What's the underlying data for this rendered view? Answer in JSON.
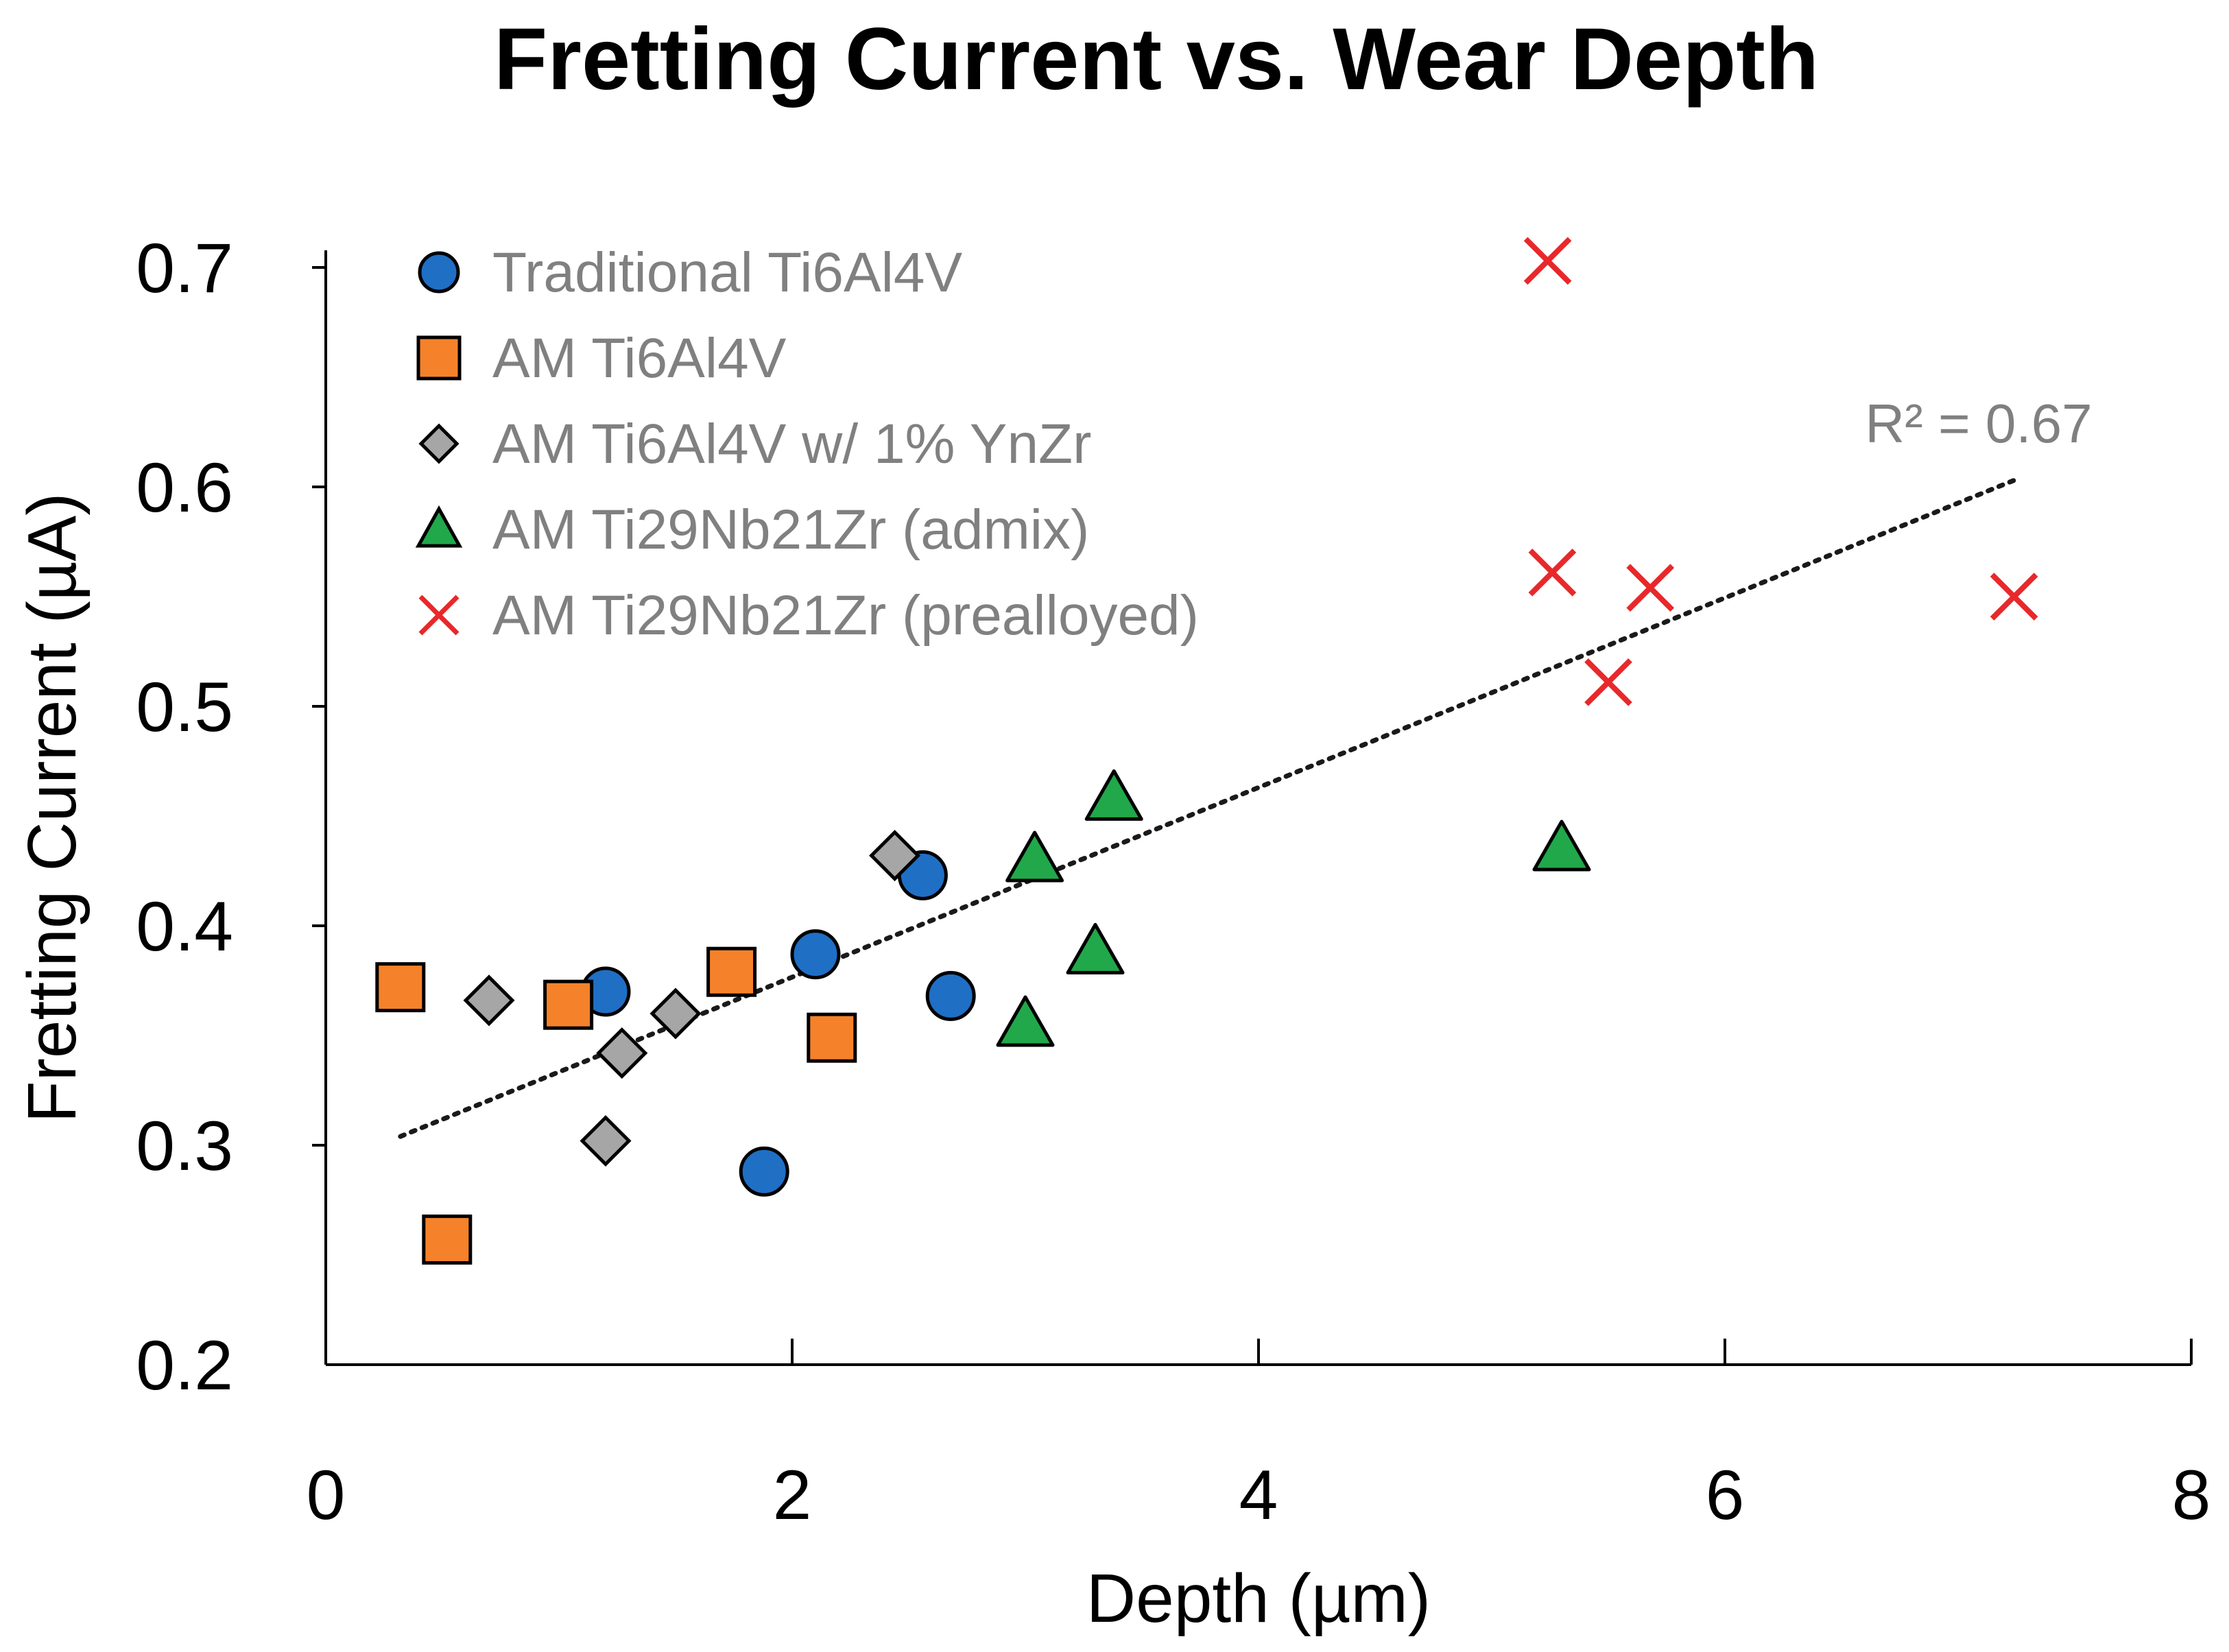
{
  "chart_data": {
    "type": "scatter",
    "title": "Fretting Current vs. Wear Depth",
    "xlabel": "Depth (µm)",
    "ylabel": "Fretting Current (µA)",
    "xlim": [
      0,
      8
    ],
    "ylim": [
      0.2,
      0.7
    ],
    "xticks": [
      "0",
      "2",
      "4",
      "6",
      "8"
    ],
    "yticks": [
      "0.2",
      "0.3",
      "0.4",
      "0.5",
      "0.6",
      "0.7"
    ],
    "legend_position": "top-left",
    "grid": false,
    "series": [
      {
        "name": "Traditional Ti6Al4V",
        "marker": "circle",
        "color": "#1F6FC5",
        "points": [
          [
            1.2,
            0.37
          ],
          [
            1.88,
            0.288
          ],
          [
            2.1,
            0.387
          ],
          [
            2.56,
            0.423
          ],
          [
            2.68,
            0.368
          ]
        ]
      },
      {
        "name": "AM Ti6Al4V",
        "marker": "square",
        "color": "#F5822A",
        "points": [
          [
            0.32,
            0.372
          ],
          [
            0.52,
            0.257
          ],
          [
            1.04,
            0.364
          ],
          [
            1.74,
            0.379
          ],
          [
            2.17,
            0.349
          ]
        ]
      },
      {
        "name": "AM Ti6Al4V w/ 1% YnZr",
        "marker": "diamond",
        "color": "#A6A6A6",
        "points": [
          [
            0.7,
            0.366
          ],
          [
            1.2,
            0.302
          ],
          [
            1.27,
            0.342
          ],
          [
            1.5,
            0.36
          ],
          [
            2.44,
            0.432
          ]
        ]
      },
      {
        "name": "AM Ti29Nb21Zr (admix)",
        "marker": "triangle",
        "color": "#21A84A",
        "points": [
          [
            3.0,
            0.355
          ],
          [
            3.04,
            0.43
          ],
          [
            3.3,
            0.388
          ],
          [
            3.38,
            0.458
          ],
          [
            5.3,
            0.435
          ]
        ]
      },
      {
        "name": "AM Ti29Nb21Zr (prealloyed)",
        "marker": "x",
        "color": "#E8282B",
        "points": [
          [
            5.24,
            0.703
          ],
          [
            5.26,
            0.561
          ],
          [
            5.5,
            0.511
          ],
          [
            5.68,
            0.554
          ],
          [
            7.24,
            0.55
          ]
        ]
      }
    ],
    "trendline": {
      "style": "dotted",
      "color": "#1a1a1a",
      "x": [
        0.32,
        7.24
      ],
      "y": [
        0.304,
        0.603
      ],
      "label": "R² = 0.67"
    }
  }
}
